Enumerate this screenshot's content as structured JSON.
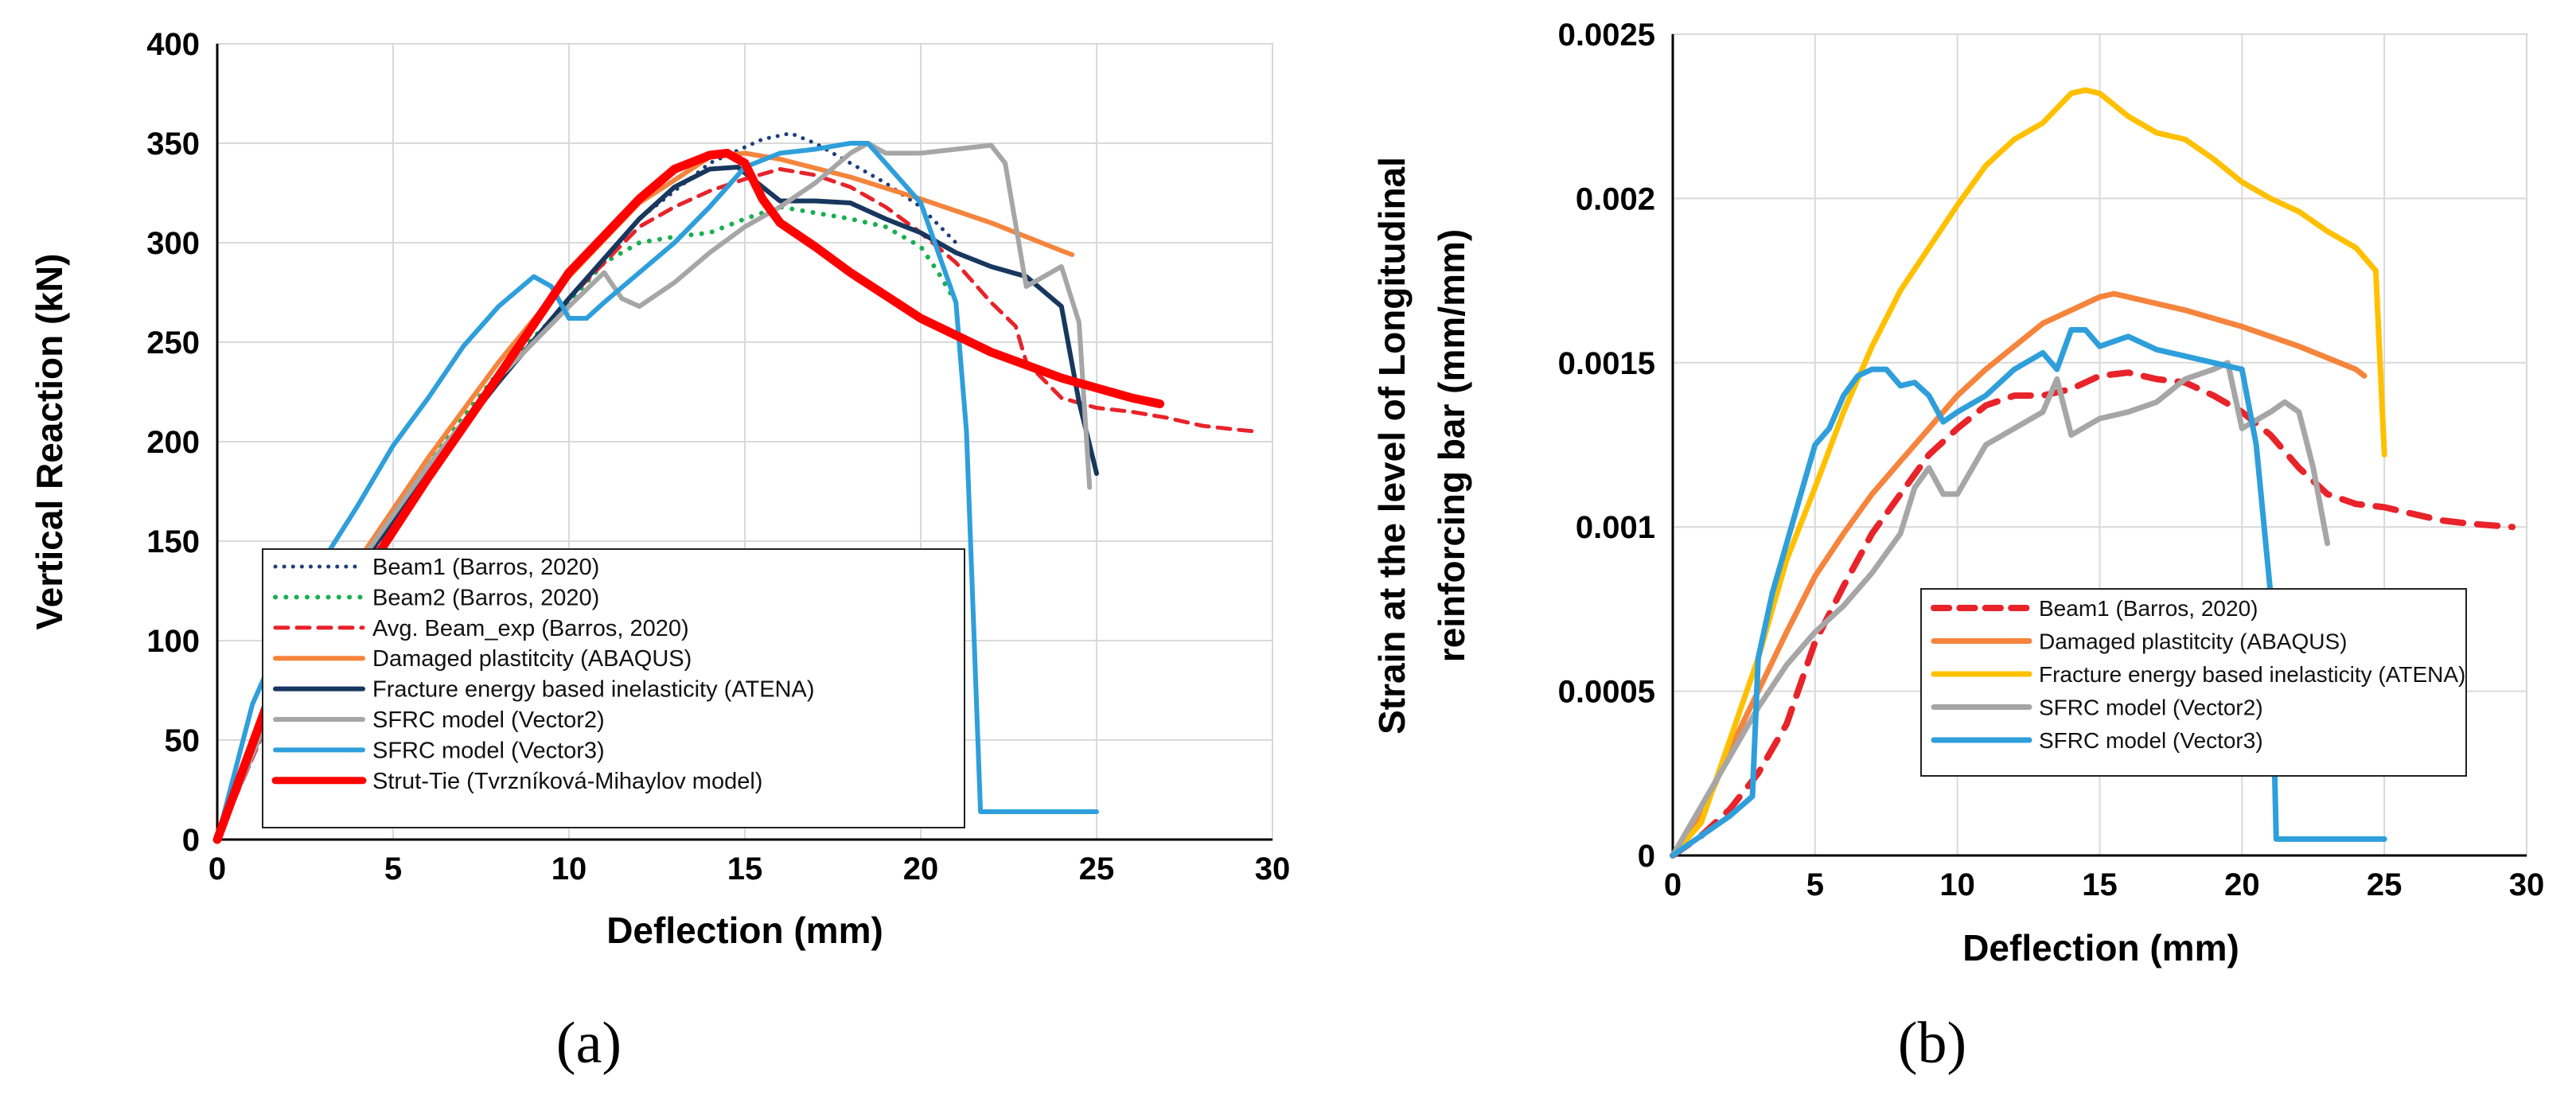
{
  "chart_data": [
    {
      "type": "line",
      "panel_label": "(a)",
      "xlabel": "Deflection (mm)",
      "ylabel": "Vertical Reaction (kN)",
      "xlim": [
        0,
        30
      ],
      "ylim": [
        0,
        400
      ],
      "xticks": [
        0,
        5,
        10,
        15,
        20,
        25,
        30
      ],
      "yticks": [
        0,
        50,
        100,
        150,
        200,
        250,
        300,
        350,
        400
      ],
      "grid": true,
      "legend_position": "lower-center",
      "series": [
        {
          "name": "Beam1 (Barros, 2020)",
          "color": "#1f3f7a",
          "style": "dotted",
          "width": 5,
          "x": [
            0,
            2,
            4,
            6,
            8,
            10,
            12,
            14,
            15.5,
            16.3,
            17,
            18,
            19,
            20,
            21
          ],
          "y": [
            0,
            82,
            135,
            185,
            230,
            272,
            312,
            340,
            352,
            355,
            350,
            340,
            330,
            318,
            300
          ]
        },
        {
          "name": "Beam2 (Barros, 2020)",
          "color": "#19b050",
          "style": "dotted",
          "width": 6,
          "x": [
            0,
            2,
            4,
            6,
            8,
            10,
            11,
            12,
            13,
            14,
            15,
            16,
            17,
            18,
            19,
            20,
            20.5,
            21
          ],
          "y": [
            0,
            85,
            140,
            190,
            235,
            270,
            290,
            300,
            303,
            305,
            312,
            318,
            315,
            312,
            308,
            298,
            285,
            270
          ]
        },
        {
          "name": "Avg. Beam_exp (Barros, 2020)",
          "color": "#e8232a",
          "style": "dashed",
          "width": 5,
          "x": [
            0,
            2,
            4,
            6,
            8,
            10,
            12,
            13,
            14,
            15,
            16,
            17,
            18,
            19,
            20,
            21,
            22,
            22.7,
            23,
            24,
            25,
            26,
            27,
            28,
            29,
            29.6
          ],
          "y": [
            0,
            82,
            135,
            185,
            230,
            272,
            308,
            318,
            326,
            332,
            337,
            334,
            328,
            318,
            305,
            290,
            270,
            258,
            240,
            222,
            217,
            215,
            212,
            208,
            206,
            205
          ]
        },
        {
          "name": "Damaged plastitcity (ABAQUS)",
          "color": "#f5843c",
          "style": "solid",
          "width": 6,
          "x": [
            0,
            2,
            4,
            6,
            8,
            10,
            12,
            14,
            15,
            16,
            18,
            20,
            22,
            24,
            24.3
          ],
          "y": [
            0,
            88,
            140,
            192,
            240,
            283,
            320,
            343,
            345,
            342,
            333,
            322,
            310,
            296,
            294
          ]
        },
        {
          "name": "Fracture energy based inelasticity (ATENA)",
          "color": "#17375e",
          "style": "solid",
          "width": 6,
          "x": [
            0,
            2,
            4,
            6,
            8,
            10,
            12,
            13,
            14,
            14.8,
            15.5,
            16,
            17,
            18,
            19,
            20,
            21,
            22,
            23,
            24,
            24.5,
            25
          ],
          "y": [
            0,
            85,
            136,
            185,
            230,
            272,
            312,
            328,
            337,
            338,
            328,
            321,
            321,
            320,
            312,
            305,
            295,
            288,
            283,
            268,
            220,
            184
          ]
        },
        {
          "name": "SFRC model (Vector2)",
          "color": "#a6a6a6",
          "style": "solid",
          "width": 6,
          "x": [
            0,
            2,
            4,
            6,
            8,
            10,
            11,
            11.5,
            12,
            13,
            14,
            15,
            16,
            17,
            18,
            18.5,
            19,
            20,
            21,
            22,
            22.4,
            23,
            24,
            24.5,
            24.8
          ],
          "y": [
            0,
            85,
            138,
            188,
            232,
            268,
            285,
            272,
            268,
            280,
            295,
            308,
            318,
            330,
            345,
            350,
            345,
            345,
            347,
            349,
            340,
            278,
            288,
            260,
            177
          ]
        },
        {
          "name": "SFRC model (Vector3)",
          "color": "#2e9fdb",
          "style": "solid",
          "width": 6,
          "x": [
            0,
            1,
            2,
            3,
            4,
            5,
            6,
            7,
            8,
            9,
            9.5,
            10,
            10.5,
            11,
            12,
            13,
            14,
            15,
            16,
            17,
            18,
            18.5,
            19,
            20,
            21,
            21.3,
            21.7,
            22,
            23,
            24,
            25
          ],
          "y": [
            0,
            68,
            108,
            140,
            168,
            198,
            222,
            248,
            268,
            283,
            278,
            262,
            262,
            270,
            285,
            300,
            318,
            338,
            345,
            347,
            350,
            350,
            340,
            320,
            270,
            205,
            14,
            14,
            14,
            14,
            14
          ]
        },
        {
          "name": "Strut-Tie (Tvrzníková-Mihaylov model)",
          "color": "#ff0000",
          "style": "solid",
          "width": 11,
          "x": [
            0,
            1.5,
            4,
            6,
            8,
            10,
            12,
            13,
            14,
            14.5,
            15,
            15.5,
            16,
            17,
            18,
            20,
            22,
            24,
            26,
            26.8
          ],
          "y": [
            0,
            72,
            128,
            182,
            233,
            285,
            322,
            337,
            344,
            345,
            340,
            322,
            310,
            298,
            285,
            262,
            245,
            232,
            222,
            219
          ]
        }
      ]
    },
    {
      "type": "line",
      "panel_label": "(b)",
      "xlabel": "Deflection (mm)",
      "ylabel": "Strain at the level of  Longitudinal reinforcing bar (mm/mm)",
      "ylabel_lines": [
        "Strain at the level of  Longitudinal",
        "reinforcing bar (mm/mm)"
      ],
      "xlim": [
        0,
        30
      ],
      "ylim": [
        0,
        0.0025
      ],
      "xticks": [
        0,
        5,
        10,
        15,
        20,
        25,
        30
      ],
      "yticks": [
        0,
        0.0005,
        0.001,
        0.0015,
        0.002,
        0.0025
      ],
      "ytick_labels": [
        "0",
        "0.0005",
        "0.001",
        "0.0015",
        "0.002",
        "0.0025"
      ],
      "grid": true,
      "legend_position": "lower-center",
      "series": [
        {
          "name": "Beam1 (Barros, 2020)",
          "color": "#e8232a",
          "style": "dashed",
          "width": 8,
          "x": [
            0,
            1,
            2,
            3,
            4,
            5,
            6,
            7,
            8,
            9,
            10,
            11,
            12,
            13,
            14,
            15,
            16,
            17,
            18,
            19,
            20,
            21,
            22,
            23,
            24,
            25,
            26,
            27,
            28,
            29.5
          ],
          "y": [
            0,
            6e-05,
            0.00014,
            0.00025,
            0.0004,
            0.00065,
            0.00082,
            0.00098,
            0.0011,
            0.00122,
            0.0013,
            0.00137,
            0.0014,
            0.0014,
            0.00142,
            0.00146,
            0.00147,
            0.00145,
            0.00144,
            0.0014,
            0.00135,
            0.00128,
            0.00118,
            0.0011,
            0.00107,
            0.00106,
            0.00104,
            0.00102,
            0.00101,
            0.001
          ]
        },
        {
          "name": "Damaged plastitcity (ABAQUS)",
          "color": "#f5843c",
          "style": "solid",
          "width": 7,
          "x": [
            0,
            1,
            2,
            3,
            4,
            5,
            6,
            7,
            8,
            9,
            10,
            11,
            12,
            13,
            14,
            15,
            15.5,
            16,
            18,
            20,
            22,
            24,
            24.3
          ],
          "y": [
            0,
            0.00012,
            0.00032,
            0.0005,
            0.00068,
            0.00085,
            0.00098,
            0.0011,
            0.0012,
            0.0013,
            0.0014,
            0.00148,
            0.00155,
            0.00162,
            0.00166,
            0.0017,
            0.00171,
            0.0017,
            0.00166,
            0.00161,
            0.00155,
            0.00148,
            0.00146
          ]
        },
        {
          "name": "Fracture energy based inelasticity (ATENA)",
          "color": "#ffc000",
          "style": "solid",
          "width": 7,
          "x": [
            0,
            1,
            2,
            3,
            4,
            5,
            6,
            7,
            8,
            9,
            10,
            11,
            12,
            13,
            14,
            14.5,
            15,
            16,
            17,
            18,
            19,
            20,
            21,
            22,
            23,
            24,
            24.7,
            25
          ],
          "y": [
            0,
            0.0001,
            0.00035,
            0.0006,
            0.0009,
            0.00112,
            0.00135,
            0.00155,
            0.00172,
            0.00185,
            0.00198,
            0.0021,
            0.00218,
            0.00223,
            0.00232,
            0.00233,
            0.00232,
            0.00225,
            0.0022,
            0.00218,
            0.00212,
            0.00205,
            0.002,
            0.00196,
            0.0019,
            0.00185,
            0.00178,
            0.00122
          ]
        },
        {
          "name": "SFRC model (Vector2)",
          "color": "#a6a6a6",
          "style": "solid",
          "width": 7,
          "x": [
            0,
            1,
            2,
            3,
            4,
            5,
            6,
            7,
            8,
            8.5,
            9,
            9.5,
            10,
            11,
            12,
            13,
            13.5,
            14,
            15,
            16,
            17,
            18,
            19,
            19.5,
            20,
            21,
            21.5,
            22,
            22.5,
            23
          ],
          "y": [
            0,
            0.00015,
            0.0003,
            0.00045,
            0.00058,
            0.00068,
            0.00076,
            0.00086,
            0.00098,
            0.00112,
            0.00118,
            0.0011,
            0.0011,
            0.00125,
            0.0013,
            0.00135,
            0.00145,
            0.00128,
            0.00133,
            0.00135,
            0.00138,
            0.00145,
            0.00148,
            0.0015,
            0.0013,
            0.00135,
            0.00138,
            0.00135,
            0.00118,
            0.00095
          ]
        },
        {
          "name": "SFRC model (Vector3)",
          "color": "#2e9fdb",
          "style": "solid",
          "width": 7,
          "x": [
            0,
            1,
            2,
            2.8,
            3,
            3.5,
            4,
            4.5,
            5,
            5.5,
            6,
            6.5,
            7,
            7.5,
            8,
            8.5,
            9,
            9.5,
            10,
            11,
            12,
            13,
            13.5,
            14,
            14.5,
            15,
            16,
            17,
            18,
            19,
            20,
            20.5,
            21,
            21.2,
            21.5,
            22,
            23,
            24,
            25
          ],
          "y": [
            0,
            6e-05,
            0.00012,
            0.00018,
            0.0006,
            0.0008,
            0.00095,
            0.0011,
            0.00125,
            0.0013,
            0.0014,
            0.00146,
            0.00148,
            0.00148,
            0.00143,
            0.00144,
            0.0014,
            0.00132,
            0.00135,
            0.0014,
            0.00148,
            0.00153,
            0.00148,
            0.0016,
            0.0016,
            0.00155,
            0.00158,
            0.00154,
            0.00152,
            0.0015,
            0.00148,
            0.00125,
            0.0008,
            5e-05,
            5e-05,
            5e-05,
            5e-05,
            5e-05,
            5e-05
          ]
        }
      ]
    }
  ]
}
